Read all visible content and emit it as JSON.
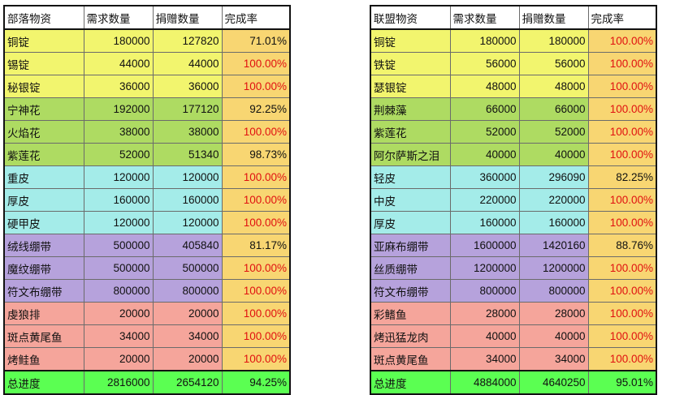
{
  "colors": {
    "yellow": "#f2f56e",
    "green": "#aedb62",
    "cyan": "#a4ece9",
    "purple": "#b6a2dc",
    "pink": "#f5a59b",
    "rate": "#f8d672",
    "total": "#5bff52",
    "full_text": "#e01010"
  },
  "horde": {
    "headers": [
      "部落物资",
      "需求数量",
      "捐赠数量",
      "完成率"
    ],
    "rows": [
      {
        "name": "铜锭",
        "need": "180000",
        "donated": "127820",
        "rate": "71.01%",
        "full": false,
        "group": "yellow"
      },
      {
        "name": "锡锭",
        "need": "44000",
        "donated": "44000",
        "rate": "100.00%",
        "full": true,
        "group": "yellow"
      },
      {
        "name": "秘银锭",
        "need": "36000",
        "donated": "36000",
        "rate": "100.00%",
        "full": true,
        "group": "yellow"
      },
      {
        "name": "宁神花",
        "need": "192000",
        "donated": "177120",
        "rate": "92.25%",
        "full": false,
        "group": "green"
      },
      {
        "name": "火焰花",
        "need": "38000",
        "donated": "38000",
        "rate": "100.00%",
        "full": true,
        "group": "green"
      },
      {
        "name": "紫莲花",
        "need": "52000",
        "donated": "51340",
        "rate": "98.73%",
        "full": false,
        "group": "green"
      },
      {
        "name": "重皮",
        "need": "120000",
        "donated": "120000",
        "rate": "100.00%",
        "full": true,
        "group": "cyan"
      },
      {
        "name": "厚皮",
        "need": "160000",
        "donated": "160000",
        "rate": "100.00%",
        "full": true,
        "group": "cyan"
      },
      {
        "name": "硬甲皮",
        "need": "120000",
        "donated": "120000",
        "rate": "100.00%",
        "full": true,
        "group": "cyan"
      },
      {
        "name": "绒线绷带",
        "need": "500000",
        "donated": "405840",
        "rate": "81.17%",
        "full": false,
        "group": "purple"
      },
      {
        "name": "魔纹绷带",
        "need": "500000",
        "donated": "500000",
        "rate": "100.00%",
        "full": true,
        "group": "purple"
      },
      {
        "name": "符文布绷带",
        "need": "800000",
        "donated": "800000",
        "rate": "100.00%",
        "full": true,
        "group": "purple"
      },
      {
        "name": "虔狼排",
        "need": "20000",
        "donated": "20000",
        "rate": "100.00%",
        "full": true,
        "group": "pink"
      },
      {
        "name": "斑点黄尾鱼",
        "need": "34000",
        "donated": "34000",
        "rate": "100.00%",
        "full": true,
        "group": "pink"
      },
      {
        "name": "烤鲑鱼",
        "need": "20000",
        "donated": "20000",
        "rate": "100.00%",
        "full": true,
        "group": "pink"
      }
    ],
    "total": {
      "name": "总进度",
      "need": "2816000",
      "donated": "2654120",
      "rate": "94.25%"
    }
  },
  "alliance": {
    "headers": [
      "联盟物资",
      "需求数量",
      "捐赠数量",
      "完成率"
    ],
    "rows": [
      {
        "name": "铜锭",
        "need": "180000",
        "donated": "180000",
        "rate": "100.00%",
        "full": true,
        "group": "yellow"
      },
      {
        "name": "铁锭",
        "need": "56000",
        "donated": "56000",
        "rate": "100.00%",
        "full": true,
        "group": "yellow"
      },
      {
        "name": "瑟银锭",
        "need": "48000",
        "donated": "48000",
        "rate": "100.00%",
        "full": true,
        "group": "yellow"
      },
      {
        "name": "荆棘藻",
        "need": "66000",
        "donated": "66000",
        "rate": "100.00%",
        "full": true,
        "group": "green"
      },
      {
        "name": "紫莲花",
        "need": "52000",
        "donated": "52000",
        "rate": "100.00%",
        "full": true,
        "group": "green"
      },
      {
        "name": "阿尔萨斯之泪",
        "need": "40000",
        "donated": "40000",
        "rate": "100.00%",
        "full": true,
        "group": "green"
      },
      {
        "name": "轻皮",
        "need": "360000",
        "donated": "296090",
        "rate": "82.25%",
        "full": false,
        "group": "cyan"
      },
      {
        "name": "中皮",
        "need": "220000",
        "donated": "220000",
        "rate": "100.00%",
        "full": true,
        "group": "cyan"
      },
      {
        "name": "厚皮",
        "need": "160000",
        "donated": "160000",
        "rate": "100.00%",
        "full": true,
        "group": "cyan"
      },
      {
        "name": "亚麻布绷带",
        "need": "1600000",
        "donated": "1420160",
        "rate": "88.76%",
        "full": false,
        "group": "purple"
      },
      {
        "name": "丝质绷带",
        "need": "1200000",
        "donated": "1200000",
        "rate": "100.00%",
        "full": true,
        "group": "purple"
      },
      {
        "name": "符文布绷带",
        "need": "800000",
        "donated": "800000",
        "rate": "100.00%",
        "full": true,
        "group": "purple"
      },
      {
        "name": "彩鳍鱼",
        "need": "28000",
        "donated": "28000",
        "rate": "100.00%",
        "full": true,
        "group": "pink"
      },
      {
        "name": "烤迅猛龙肉",
        "need": "40000",
        "donated": "40000",
        "rate": "100.00%",
        "full": true,
        "group": "pink"
      },
      {
        "name": "斑点黄尾鱼",
        "need": "34000",
        "donated": "34000",
        "rate": "100.00%",
        "full": true,
        "group": "pink"
      }
    ],
    "total": {
      "name": "总进度",
      "need": "4884000",
      "donated": "4640250",
      "rate": "95.01%"
    }
  }
}
